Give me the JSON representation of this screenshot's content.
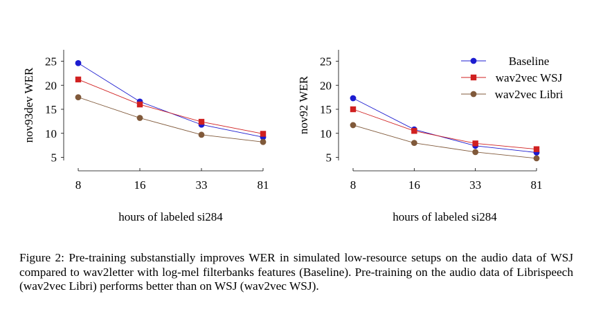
{
  "chart_data": [
    {
      "type": "line",
      "x": [
        8,
        16,
        33,
        81
      ],
      "x_tick_labels": [
        "8",
        "16",
        "33",
        "81"
      ],
      "y_ticks": [
        5,
        10,
        15,
        20,
        25
      ],
      "ylim": [
        3,
        26
      ],
      "xlabel": "hours of labeled si284",
      "ylabel": "nov93dev WER",
      "series": [
        {
          "name": "Baseline",
          "color": "#1c1cd0",
          "marker": "circle",
          "values": [
            24.6,
            16.6,
            11.8,
            9.2
          ]
        },
        {
          "name": "wav2vec WSJ",
          "color": "#d02020",
          "marker": "square",
          "values": [
            21.2,
            16.0,
            12.4,
            9.9
          ]
        },
        {
          "name": "wav2vec Libri",
          "color": "#80593a",
          "marker": "circle",
          "values": [
            17.5,
            13.2,
            9.7,
            8.2
          ]
        }
      ]
    },
    {
      "type": "line",
      "x": [
        8,
        16,
        33,
        81
      ],
      "x_tick_labels": [
        "8",
        "16",
        "33",
        "81"
      ],
      "y_ticks": [
        5,
        10,
        15,
        20,
        25
      ],
      "ylim": [
        3,
        26
      ],
      "xlabel": "hours of labeled si284",
      "ylabel": "nov92 WER",
      "legend": "top-right",
      "series": [
        {
          "name": "Baseline",
          "color": "#1c1cd0",
          "marker": "circle",
          "values": [
            17.3,
            10.8,
            7.4,
            6.0
          ]
        },
        {
          "name": "wav2vec WSJ",
          "color": "#d02020",
          "marker": "square",
          "values": [
            15.0,
            10.5,
            7.9,
            6.7
          ]
        },
        {
          "name": "wav2vec Libri",
          "color": "#80593a",
          "marker": "circle",
          "values": [
            11.7,
            8.0,
            6.1,
            4.8
          ]
        }
      ]
    }
  ],
  "caption": "Figure 2: Pre-training substanstially improves WER in simulated low-resource setups on the audio data of WSJ compared to wav2letter with log-mel filterbanks features (Baseline). Pre-training on the audio data of Librispeech (wav2vec Libri) performs better than on WSJ (wav2vec WSJ)."
}
